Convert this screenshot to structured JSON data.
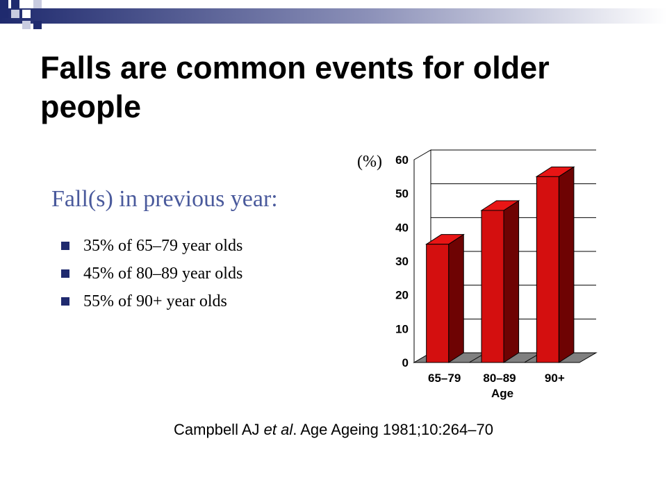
{
  "slide": {
    "title": "Falls are common events for older people",
    "subtitle": "Fall(s) in previous year:",
    "bullets": [
      "35% of 65–79 year olds",
      "45% of 80–89 year olds",
      "55% of 90+ year olds"
    ],
    "citation": {
      "author": "Campbell AJ ",
      "etal": "et al",
      "source": ". Age Ageing 1981;10:264–70"
    }
  },
  "chart_data": {
    "type": "bar",
    "categories": [
      "65–79",
      "80–89",
      "90+"
    ],
    "values": [
      35,
      45,
      55
    ],
    "xlabel": "Age",
    "ylabel": "(%)",
    "ylim": [
      0,
      60
    ],
    "yticks": [
      0,
      10,
      20,
      30,
      40,
      50,
      60
    ],
    "grid": true,
    "bar_color": "#d40f0f",
    "bar_top_color": "#e81515",
    "bar_side_color": "#6e0303"
  },
  "colors": {
    "accent": "#1f2a6e",
    "subtitle": "#4a5a9c"
  }
}
